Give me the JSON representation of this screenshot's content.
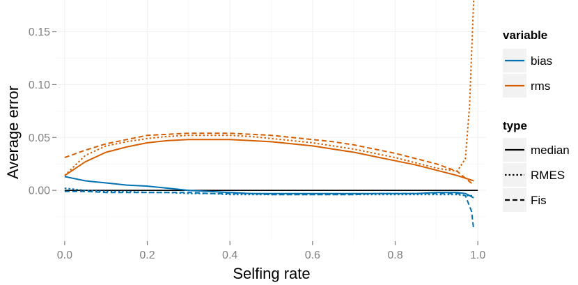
{
  "chart_data": {
    "type": "line",
    "xlabel": "Selfing rate",
    "ylabel": "Average error",
    "xlim": [
      -0.02,
      1.02
    ],
    "ylim": [
      -0.048,
      0.18
    ],
    "xticks": [
      0.0,
      0.2,
      0.4,
      0.6,
      0.8,
      1.0
    ],
    "xtick_labels": [
      "0.0",
      "0.2",
      "0.4",
      "0.6",
      "0.8",
      "1.0"
    ],
    "yticks": [
      0.0,
      0.05,
      0.1,
      0.15
    ],
    "ytick_labels": [
      "0.00",
      "0.05",
      "0.10",
      "0.15"
    ],
    "grid": true,
    "hline": 0,
    "colors": {
      "bias": "#0072B2",
      "rms": "#D55E00",
      "grid": "#f2f2f2",
      "panel": "#ffffff"
    },
    "legend": {
      "position": "right",
      "variable_title": "variable",
      "variable_entries": [
        {
          "label": "bias",
          "color": "#0072B2"
        },
        {
          "label": "rms",
          "color": "#D55E00"
        }
      ],
      "type_title": "type",
      "type_entries": [
        {
          "label": "median",
          "dash": "solid"
        },
        {
          "label": "RMES",
          "dash": "dotted"
        },
        {
          "label": "Fis",
          "dash": "dashed"
        }
      ]
    },
    "series": [
      {
        "variable": "rms",
        "type": "median",
        "x": [
          0.0,
          0.05,
          0.1,
          0.15,
          0.2,
          0.25,
          0.3,
          0.35,
          0.4,
          0.45,
          0.5,
          0.55,
          0.6,
          0.65,
          0.7,
          0.75,
          0.8,
          0.85,
          0.9,
          0.95,
          0.99
        ],
        "y": [
          0.014,
          0.027,
          0.036,
          0.041,
          0.045,
          0.047,
          0.048,
          0.048,
          0.048,
          0.047,
          0.046,
          0.044,
          0.042,
          0.039,
          0.036,
          0.032,
          0.028,
          0.024,
          0.019,
          0.014,
          0.009
        ]
      },
      {
        "variable": "rms",
        "type": "RMES",
        "x": [
          0.0,
          0.05,
          0.1,
          0.15,
          0.2,
          0.25,
          0.3,
          0.35,
          0.4,
          0.45,
          0.5,
          0.55,
          0.6,
          0.65,
          0.7,
          0.75,
          0.8,
          0.85,
          0.9,
          0.95,
          0.97,
          0.98,
          0.99
        ],
        "y": [
          0.014,
          0.033,
          0.042,
          0.046,
          0.049,
          0.051,
          0.052,
          0.052,
          0.052,
          0.051,
          0.049,
          0.047,
          0.045,
          0.042,
          0.039,
          0.035,
          0.031,
          0.026,
          0.021,
          0.018,
          0.03,
          0.08,
          0.18
        ]
      },
      {
        "variable": "rms",
        "type": "Fis",
        "x": [
          0.0,
          0.05,
          0.1,
          0.15,
          0.2,
          0.25,
          0.3,
          0.35,
          0.4,
          0.45,
          0.5,
          0.55,
          0.6,
          0.65,
          0.7,
          0.75,
          0.8,
          0.85,
          0.9,
          0.95,
          0.99
        ],
        "y": [
          0.031,
          0.038,
          0.044,
          0.048,
          0.052,
          0.053,
          0.054,
          0.054,
          0.054,
          0.053,
          0.052,
          0.05,
          0.048,
          0.046,
          0.043,
          0.039,
          0.035,
          0.03,
          0.025,
          0.018,
          0.005
        ]
      },
      {
        "variable": "bias",
        "type": "median",
        "x": [
          0.0,
          0.05,
          0.1,
          0.15,
          0.2,
          0.25,
          0.3,
          0.35,
          0.4,
          0.45,
          0.5,
          0.55,
          0.6,
          0.65,
          0.7,
          0.75,
          0.8,
          0.85,
          0.9,
          0.95,
          0.97,
          0.99
        ],
        "y": [
          0.013,
          0.009,
          0.007,
          0.005,
          0.004,
          0.002,
          0.0,
          -0.001,
          -0.002,
          -0.003,
          -0.003,
          -0.003,
          -0.003,
          -0.003,
          -0.003,
          -0.003,
          -0.003,
          -0.003,
          -0.002,
          -0.002,
          -0.003,
          -0.007
        ]
      },
      {
        "variable": "bias",
        "type": "RMES",
        "x": [
          0.0,
          0.05,
          0.1,
          0.15,
          0.2,
          0.25,
          0.3,
          0.35,
          0.4,
          0.45,
          0.5,
          0.55,
          0.6,
          0.65,
          0.7,
          0.75,
          0.8,
          0.85,
          0.9,
          0.95,
          0.97,
          0.99
        ],
        "y": [
          0.002,
          0.0,
          -0.001,
          -0.001,
          -0.002,
          -0.002,
          -0.003,
          -0.003,
          -0.004,
          -0.004,
          -0.004,
          -0.004,
          -0.004,
          -0.004,
          -0.004,
          -0.004,
          -0.004,
          -0.004,
          -0.004,
          -0.004,
          -0.005,
          -0.005
        ]
      },
      {
        "variable": "bias",
        "type": "Fis",
        "x": [
          0.0,
          0.05,
          0.1,
          0.15,
          0.2,
          0.25,
          0.3,
          0.35,
          0.4,
          0.45,
          0.5,
          0.55,
          0.6,
          0.65,
          0.7,
          0.75,
          0.8,
          0.85,
          0.9,
          0.95,
          0.97,
          0.985,
          0.99
        ],
        "y": [
          -0.001,
          -0.001,
          -0.002,
          -0.002,
          -0.002,
          -0.002,
          -0.002,
          -0.003,
          -0.003,
          -0.003,
          -0.004,
          -0.004,
          -0.004,
          -0.004,
          -0.004,
          -0.003,
          -0.003,
          -0.003,
          -0.003,
          -0.003,
          -0.005,
          -0.02,
          -0.037
        ]
      }
    ]
  }
}
